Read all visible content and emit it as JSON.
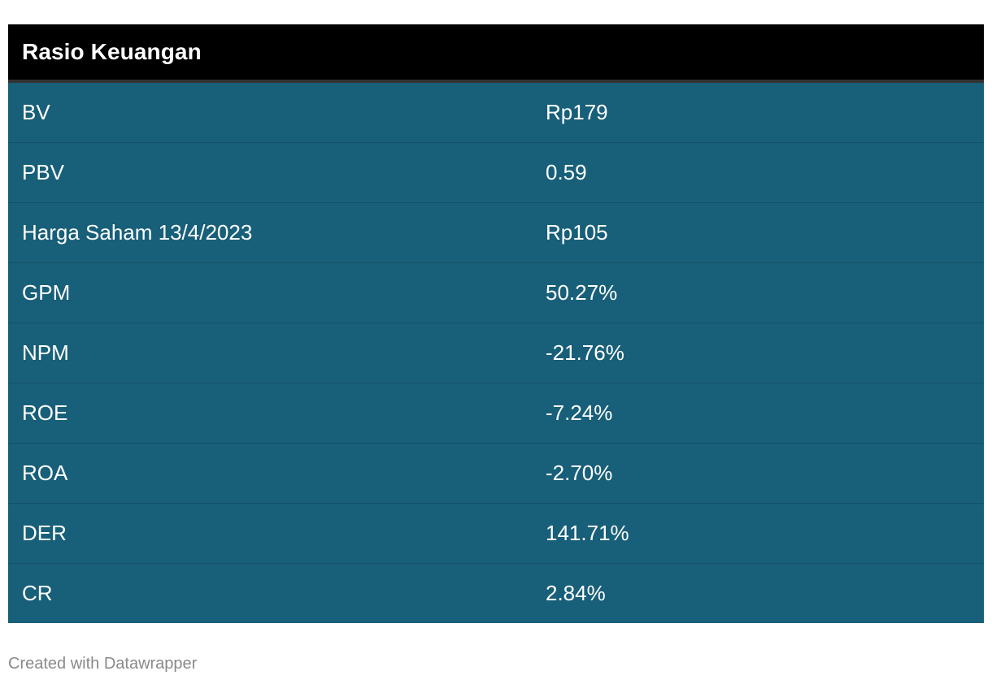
{
  "table": {
    "header": "Rasio Keuangan",
    "rows": [
      {
        "label": "BV",
        "value": "Rp179"
      },
      {
        "label": "PBV",
        "value": "0.59"
      },
      {
        "label": "Harga Saham 13/4/2023",
        "value": "Rp105"
      },
      {
        "label": "GPM",
        "value": "50.27%"
      },
      {
        "label": "NPM",
        "value": "-21.76%"
      },
      {
        "label": "ROE",
        "value": "-7.24%"
      },
      {
        "label": "ROA",
        "value": "-2.70%"
      },
      {
        "label": "DER",
        "value": "141.71%"
      },
      {
        "label": "CR",
        "value": "2.84%"
      }
    ]
  },
  "footer": {
    "credit": "Created with Datawrapper"
  },
  "colors": {
    "header_bg": "#000000",
    "row_bg": "#185f79",
    "text": "#ffffff",
    "footer_text": "#8a8a8a"
  }
}
